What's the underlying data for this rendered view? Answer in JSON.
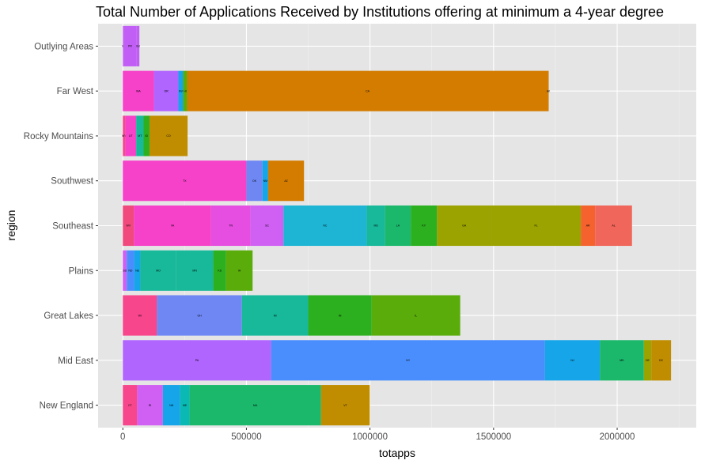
{
  "chart_data": {
    "type": "bar",
    "orientation": "horizontal",
    "stacked": true,
    "title": "Total Number of Applications Received by Institutions offering at minimum a 4-year degree",
    "xlabel": "totapps",
    "ylabel": "region",
    "xlim": [
      -100000,
      2320000
    ],
    "x_ticks": [
      0,
      500000,
      1000000,
      1500000,
      2000000
    ],
    "x_tick_labels": [
      "0",
      "500000",
      "1000000",
      "1500000",
      "2000000"
    ],
    "grid": true,
    "legend": "none",
    "panel_background": "#e5e5e5",
    "grid_major_color": "#ffffff",
    "categories": [
      "New England",
      "Mid East",
      "Great Lakes",
      "Plains",
      "Southeast",
      "Southwest",
      "Rocky Mountains",
      "Far West",
      "Outlying Areas"
    ],
    "bars": [
      {
        "region": "New England",
        "segments": [
          {
            "label": "CT",
            "value": 58000,
            "color": "#f8468c"
          },
          {
            "label": "RI",
            "value": 104000,
            "color": "#cf60f3"
          },
          {
            "label": "NH",
            "value": 70000,
            "color": "#15a5e8"
          },
          {
            "label": "ME",
            "value": 38000,
            "color": "#0ab9b4"
          },
          {
            "label": "MA",
            "value": 532000,
            "color": "#1bb86c"
          },
          {
            "label": "VT",
            "value": 197000,
            "color": "#c08d00"
          }
        ]
      },
      {
        "region": "Mid East",
        "segments": [
          {
            "label": "PA",
            "value": 600000,
            "color": "#b065ff"
          },
          {
            "label": "NY",
            "value": 1108000,
            "color": "#4a8efe"
          },
          {
            "label": "NJ",
            "value": 222000,
            "color": "#15a5e8"
          },
          {
            "label": "MD",
            "value": 178000,
            "color": "#1bb86c"
          },
          {
            "label": "DE",
            "value": 30000,
            "color": "#9ba300"
          },
          {
            "label": "DC",
            "value": 80000,
            "color": "#c08d00"
          }
        ]
      },
      {
        "region": "Great Lakes",
        "segments": [
          {
            "label": "WI",
            "value": 138000,
            "color": "#f8468c"
          },
          {
            "label": "OH",
            "value": 344000,
            "color": "#6f87f3"
          },
          {
            "label": "MI",
            "value": 268000,
            "color": "#18b99a"
          },
          {
            "label": "IN",
            "value": 257000,
            "color": "#2db01f"
          },
          {
            "label": "IL",
            "value": 358000,
            "color": "#5aac0a"
          }
        ]
      },
      {
        "region": "Plains",
        "segments": [
          {
            "label": "SD",
            "value": 16000,
            "color": "#cf60f3"
          },
          {
            "label": "ND",
            "value": 30000,
            "color": "#4a8efe"
          },
          {
            "label": "NE",
            "value": 25000,
            "color": "#15a5e8"
          },
          {
            "label": "MO",
            "value": 145000,
            "color": "#18b99a"
          },
          {
            "label": "MN",
            "value": 150000,
            "color": "#18b99a"
          },
          {
            "label": "KS",
            "value": 52000,
            "color": "#2db01f"
          },
          {
            "label": "IA",
            "value": 107000,
            "color": "#5aac0a"
          }
        ]
      },
      {
        "region": "Southeast",
        "segments": [
          {
            "label": "WV",
            "value": 45000,
            "color": "#f1497e"
          },
          {
            "label": "VA",
            "value": 312000,
            "color": "#f542c9"
          },
          {
            "label": "TN",
            "value": 160000,
            "color": "#e54ee1"
          },
          {
            "label": "SC",
            "value": 133000,
            "color": "#cf60f3"
          },
          {
            "label": "NC",
            "value": 337000,
            "color": "#1eb5d5"
          },
          {
            "label": "MS",
            "value": 74000,
            "color": "#18b99a"
          },
          {
            "label": "LA",
            "value": 104000,
            "color": "#1bb86c"
          },
          {
            "label": "KY",
            "value": 106000,
            "color": "#2db01f"
          },
          {
            "label": "GA",
            "value": 220000,
            "color": "#9ba300"
          },
          {
            "label": "FL",
            "value": 362000,
            "color": "#9ba300"
          },
          {
            "label": "AR",
            "value": 58000,
            "color": "#f5622d"
          },
          {
            "label": "AL",
            "value": 149000,
            "color": "#f0665b"
          }
        ]
      },
      {
        "region": "Southwest",
        "segments": [
          {
            "label": "TX",
            "value": 500000,
            "color": "#f542c9"
          },
          {
            "label": "OK",
            "value": 65000,
            "color": "#6f87f3"
          },
          {
            "label": "NM",
            "value": 23000,
            "color": "#15a5e8"
          },
          {
            "label": "AZ",
            "value": 145000,
            "color": "#d47c00"
          }
        ]
      },
      {
        "region": "Rocky Mountains",
        "segments": [
          {
            "label": "WY",
            "value": 10000,
            "color": "#f8468c"
          },
          {
            "label": "UT",
            "value": 44000,
            "color": "#f542c9"
          },
          {
            "label": "MT",
            "value": 30000,
            "color": "#18b99a"
          },
          {
            "label": "ID",
            "value": 24000,
            "color": "#2db01f"
          },
          {
            "label": "CO",
            "value": 154000,
            "color": "#c08d00"
          }
        ]
      },
      {
        "region": "Far West",
        "segments": [
          {
            "label": "WA",
            "value": 126000,
            "color": "#f542c9"
          },
          {
            "label": "OR",
            "value": 99000,
            "color": "#b065ff"
          },
          {
            "label": "NV",
            "value": 19000,
            "color": "#15a5e8"
          },
          {
            "label": "HI",
            "value": 16000,
            "color": "#5aac0a"
          },
          {
            "label": "CA",
            "value": 1460000,
            "color": "#d47c00"
          },
          {
            "label": "AK",
            "value": 3000,
            "color": "#d47c00"
          }
        ]
      },
      {
        "region": "Outlying Areas",
        "segments": [
          {
            "label": "VI",
            "value": 3000,
            "color": "#c15ef5"
          },
          {
            "label": "PR",
            "value": 53000,
            "color": "#c15ef5"
          },
          {
            "label": "GU",
            "value": 11000,
            "color": "#c15ef5"
          }
        ]
      }
    ]
  }
}
